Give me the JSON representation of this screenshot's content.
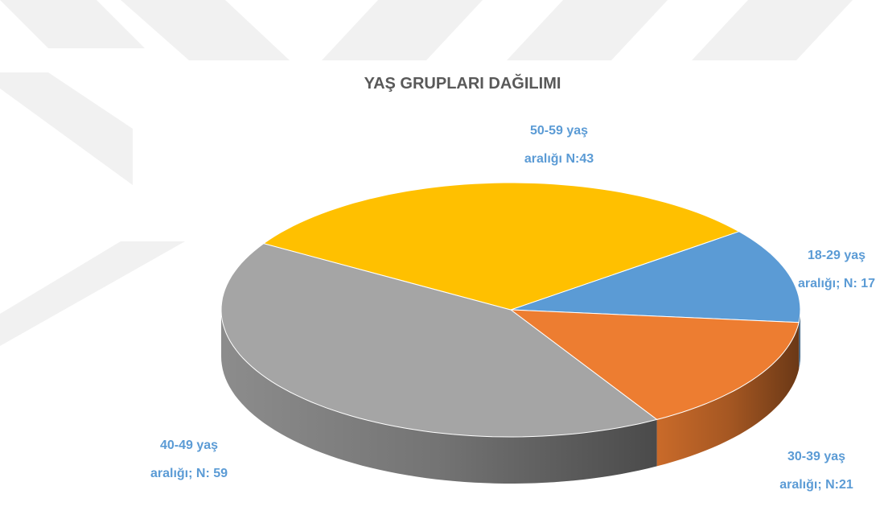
{
  "chart_data": {
    "type": "pie3d",
    "title": "YAŞ GRUPLARI  DAĞILIMI",
    "values": [
      17,
      21,
      59,
      43
    ],
    "value_labels": [
      [
        "18-29 yaş",
        "aralığı; N: 17"
      ],
      [
        "30-39 yaş",
        "aralığı; N:21"
      ],
      [
        "40-49 yaş",
        "aralığı; N: 59"
      ],
      [
        "50-59 yaş",
        "aralığı N:43"
      ]
    ],
    "colors": [
      "#5b9bd5",
      "#ed7d31",
      "#a5a5a5",
      "#ffc000"
    ]
  }
}
